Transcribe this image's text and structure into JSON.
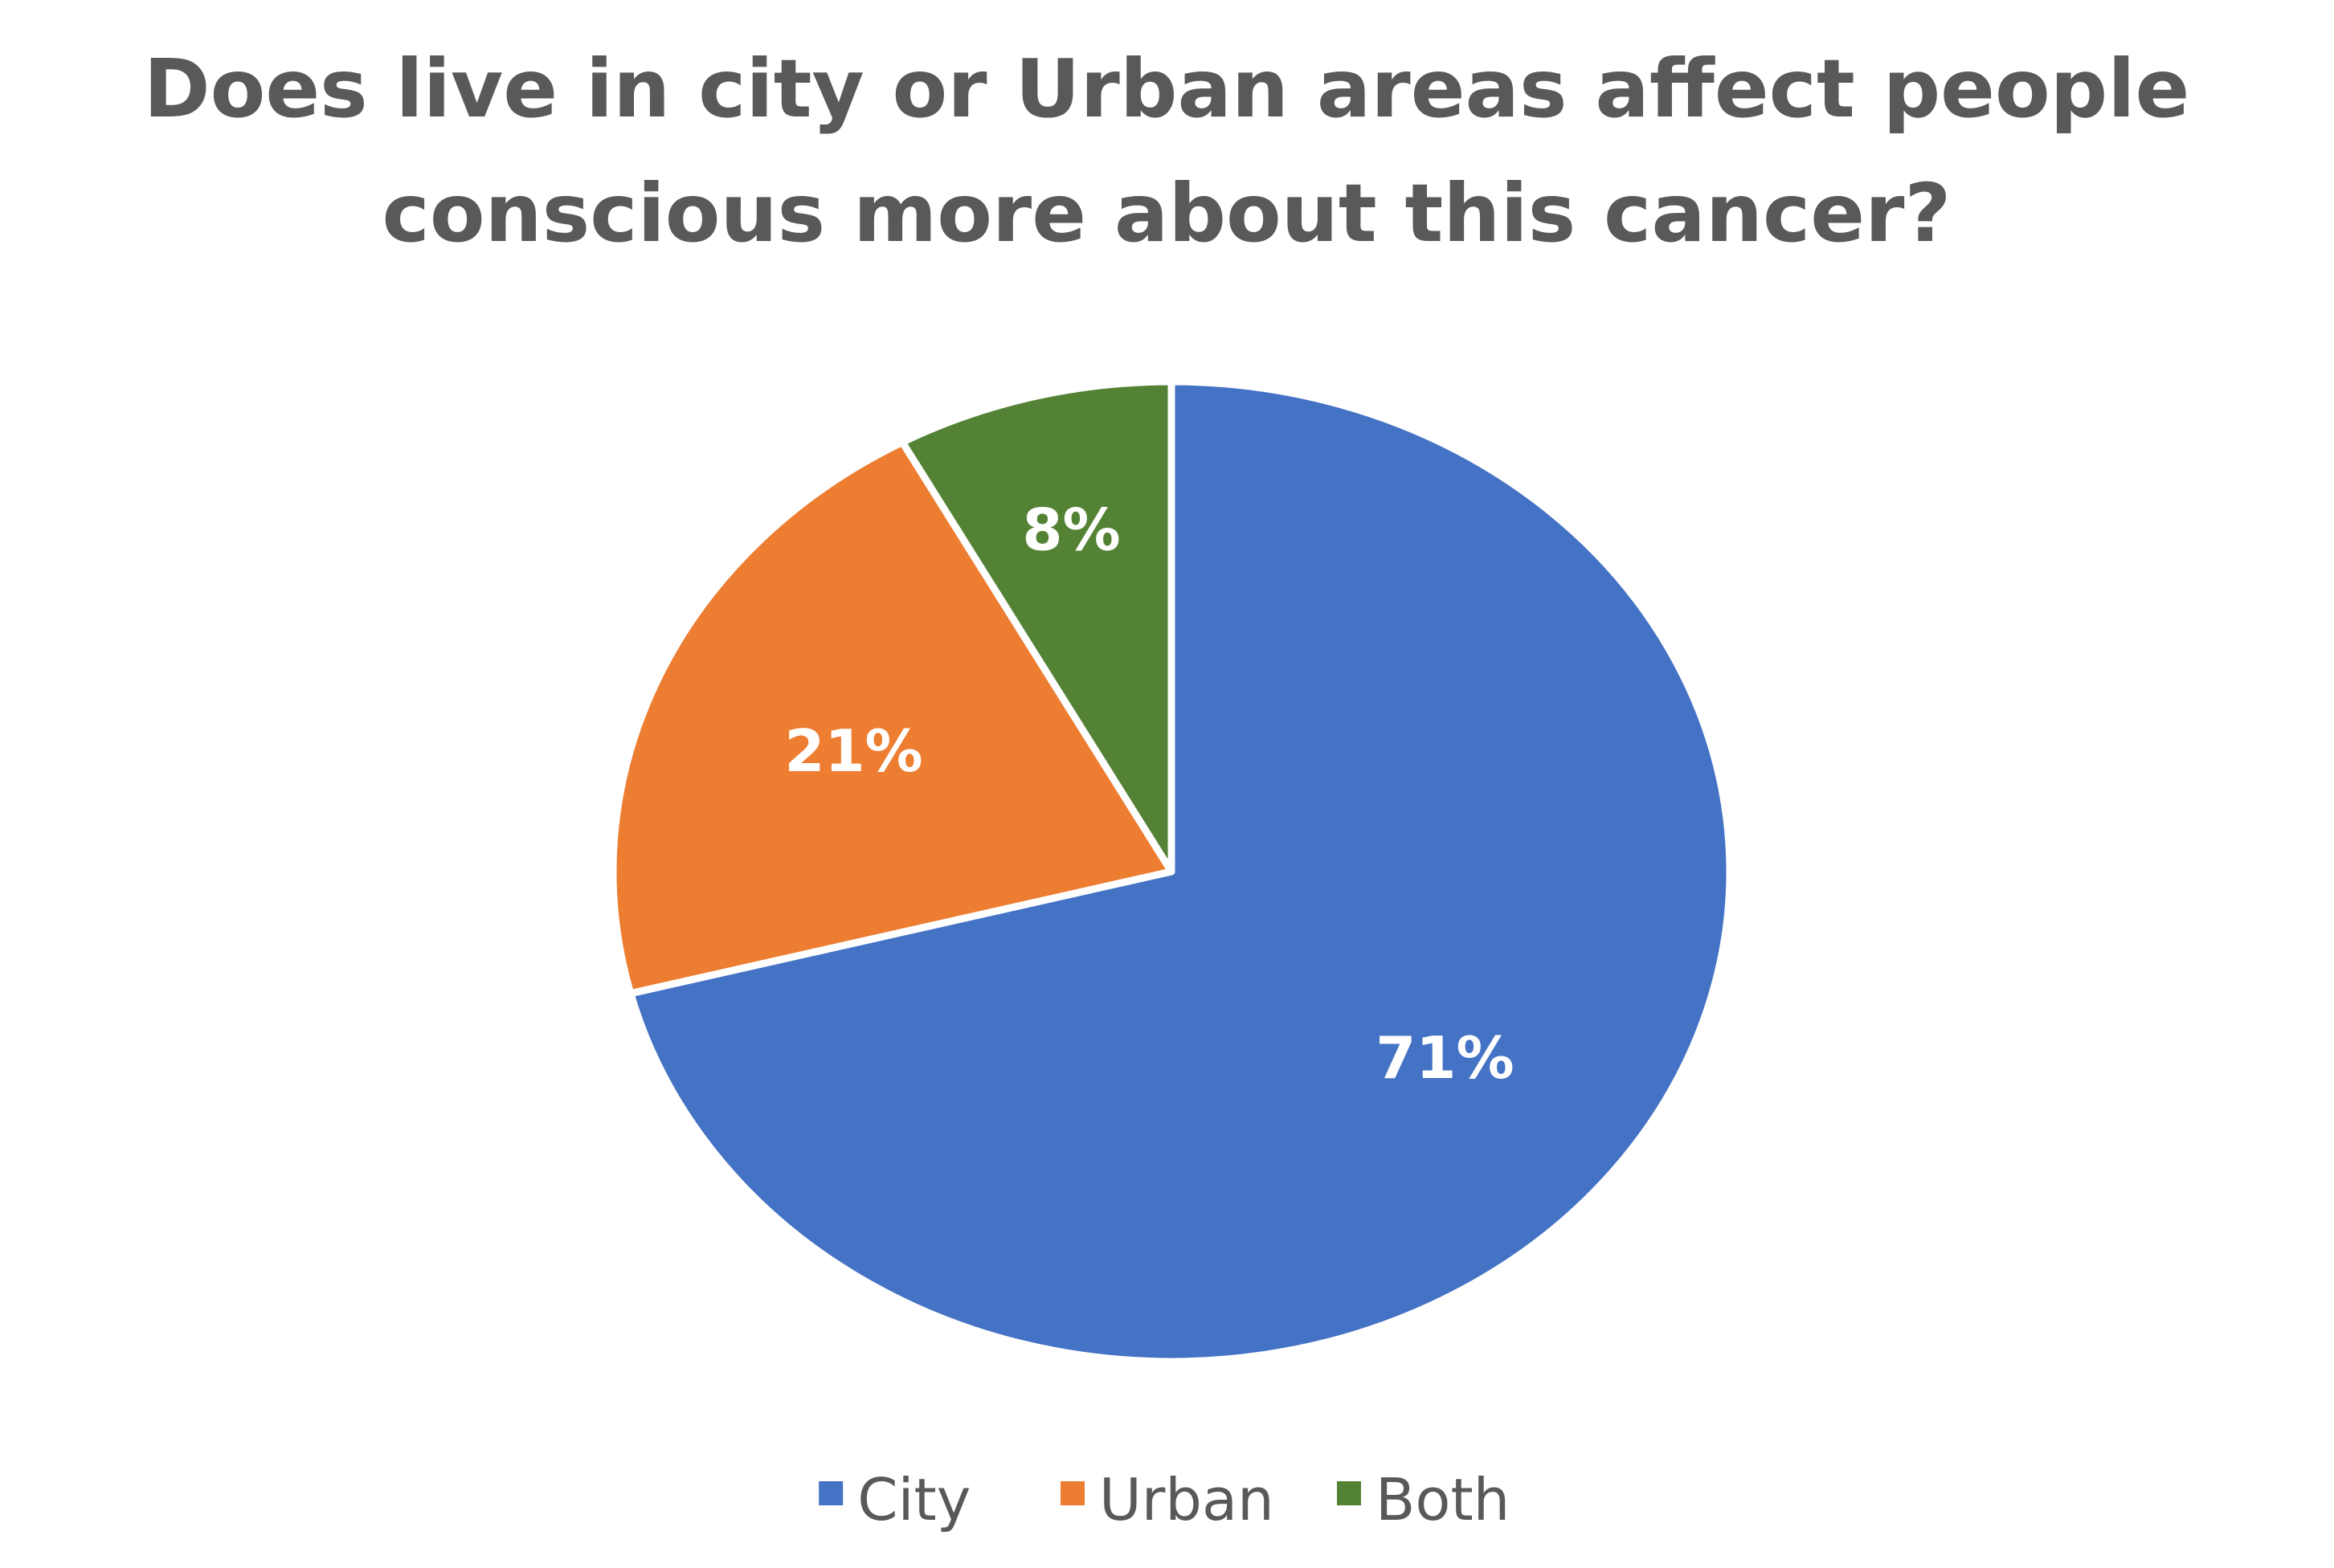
{
  "chart_data": {
    "type": "pie",
    "title_lines": [
      "Does live in city or Urban areas affect people",
      "conscious more about this cancer?"
    ],
    "categories": [
      "City",
      "Urban",
      "Both"
    ],
    "values": [
      71,
      21,
      8
    ],
    "data_labels": [
      "71%",
      "21%",
      "8%"
    ],
    "colors": [
      "#4472C4",
      "#ED7D31",
      "#548235"
    ],
    "start_angle_deg": 0,
    "direction": "clockwise",
    "legend": {
      "position": "bottom",
      "items": [
        "City",
        "Urban",
        "Both"
      ]
    }
  }
}
